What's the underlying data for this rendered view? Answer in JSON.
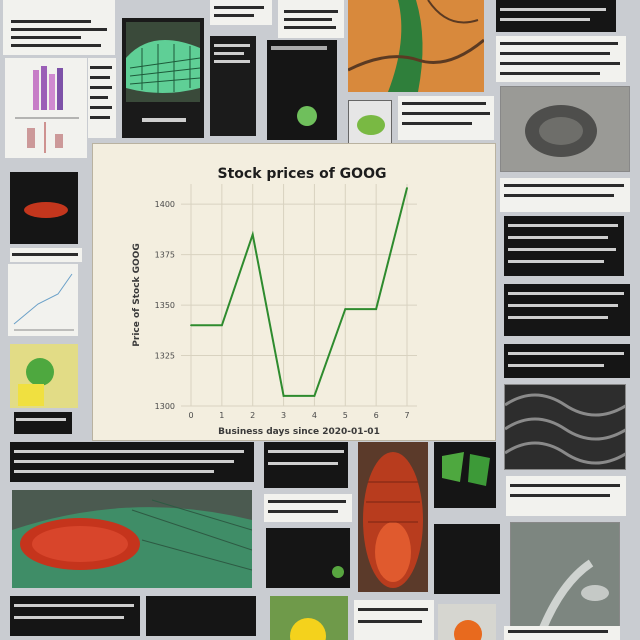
{
  "collage": {
    "tiles": [
      {
        "id": "t01",
        "kind": "dark-text"
      },
      {
        "id": "t02",
        "kind": "bar-chart-thumb"
      },
      {
        "id": "t03",
        "kind": "green-scales"
      },
      {
        "id": "t04",
        "kind": "dark-photo"
      },
      {
        "id": "t05",
        "kind": "orange-branch"
      },
      {
        "id": "t06",
        "kind": "text-panel"
      },
      {
        "id": "t07",
        "kind": "gray-organism"
      },
      {
        "id": "t08",
        "kind": "red-bean"
      },
      {
        "id": "t09",
        "kind": "line-thumb"
      },
      {
        "id": "t10",
        "kind": "yellow-plant"
      },
      {
        "id": "t11",
        "kind": "dark-waves"
      },
      {
        "id": "t12",
        "kind": "red-scaled-body"
      },
      {
        "id": "t13",
        "kind": "red-beetle"
      },
      {
        "id": "t14",
        "kind": "green-leaf"
      },
      {
        "id": "t15",
        "kind": "gray-plant"
      },
      {
        "id": "t16",
        "kind": "yellow-flower"
      },
      {
        "id": "t17",
        "kind": "orange-blob"
      }
    ]
  },
  "chart_data": {
    "type": "line",
    "title": "Stock prices of GOOG",
    "xlabel": "Business days since 2020-01-01",
    "ylabel": "Price of Stock GOOG",
    "x": [
      0,
      1,
      2,
      3,
      4,
      5,
      6,
      7
    ],
    "x_tick_labels": [
      "0",
      "1",
      "2",
      "3",
      "4",
      "5",
      "6",
      "7"
    ],
    "y": [
      1340,
      1340,
      1385,
      1305,
      1305,
      1348,
      1348,
      1408
    ],
    "ylim": [
      1300,
      1410
    ],
    "y_ticks": [
      1300,
      1325,
      1350,
      1375,
      1400
    ],
    "line_color": "#2e8b2e",
    "background": "#f3eedf",
    "grid": true
  }
}
